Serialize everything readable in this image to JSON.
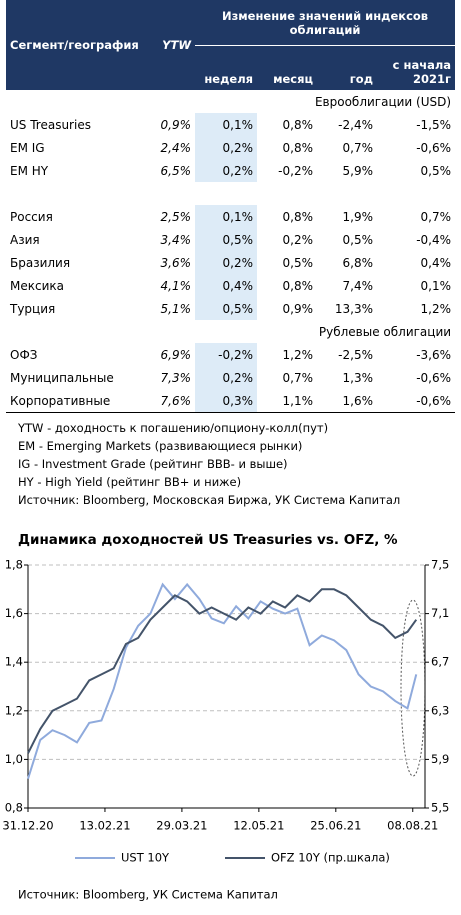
{
  "table": {
    "header": {
      "segment": "Сегмент/география",
      "ytw": "YTW",
      "change": "Изменение значений индексов облигаций",
      "columns": [
        "неделя",
        "месяц",
        "год",
        "с начала 2021г"
      ]
    },
    "sections": [
      {
        "title": "Еврооблигации (USD)",
        "rows": [
          [
            "US Treasuries",
            "0,9%",
            "0,1%",
            "0,8%",
            "-2,4%",
            "-1,5%"
          ],
          [
            "EM IG",
            "2,4%",
            "0,2%",
            "0,8%",
            "0,7%",
            "-0,6%"
          ],
          [
            "EM HY",
            "6,5%",
            "0,2%",
            "-0,2%",
            "5,9%",
            "0,5%"
          ]
        ]
      },
      {
        "rows": [
          [
            "Россия",
            "2,5%",
            "0,1%",
            "0,8%",
            "1,9%",
            "0,7%"
          ],
          [
            "Азия",
            "3,4%",
            "0,5%",
            "0,2%",
            "0,5%",
            "-0,4%"
          ],
          [
            "Бразилия",
            "3,6%",
            "0,2%",
            "0,5%",
            "6,8%",
            "0,4%"
          ],
          [
            "Мексика",
            "4,1%",
            "0,4%",
            "0,8%",
            "7,4%",
            "0,1%"
          ],
          [
            "Турция",
            "5,1%",
            "0,5%",
            "0,9%",
            "13,3%",
            "1,2%"
          ]
        ]
      },
      {
        "title": "Рублевые облигации",
        "rows": [
          [
            "ОФЗ",
            "6,9%",
            "-0,2%",
            "1,2%",
            "-2,5%",
            "-3,6%"
          ],
          [
            "Муниципальные",
            "7,3%",
            "0,2%",
            "0,7%",
            "1,3%",
            "-0,6%"
          ],
          [
            "Корпоративные",
            "7,6%",
            "0,3%",
            "1,1%",
            "1,6%",
            "-0,6%"
          ]
        ]
      }
    ]
  },
  "notes": [
    "YTW - доходность к погашению/опциону-колл(пут)",
    "EM - Emerging Markets (развивающиеся рынки)",
    "IG - Investment Grade (рейтинг BBB- и выше)",
    "HY - High Yield (рейтинг BB+ и ниже)",
    "Источник: Bloomberg, Московская Биржа, УК Система Капитал"
  ],
  "chart_data": {
    "type": "line",
    "title": "Динамика доходностей US Treasuries vs. OFZ, %",
    "x": [
      "31.12.20",
      "07.01.21",
      "14.01.21",
      "21.01.21",
      "28.01.21",
      "04.02.21",
      "11.02.21",
      "18.02.21",
      "25.02.21",
      "04.03.21",
      "11.03.21",
      "18.03.21",
      "25.03.21",
      "01.04.21",
      "08.04.21",
      "15.04.21",
      "22.04.21",
      "29.04.21",
      "06.05.21",
      "13.05.21",
      "20.05.21",
      "27.05.21",
      "03.06.21",
      "10.06.21",
      "17.06.21",
      "24.06.21",
      "01.07.21",
      "08.07.21",
      "15.07.21",
      "22.07.21",
      "29.07.21",
      "05.08.21",
      "10.08.21"
    ],
    "xlim": [
      "31.12.20",
      "15.08.21"
    ],
    "xticks": [
      "31.12.20",
      "13.02.21",
      "29.03.21",
      "12.05.21",
      "25.06.21",
      "08.08.21"
    ],
    "ylim": [
      0.8,
      1.8
    ],
    "yticks": [
      {
        "value": 0.8,
        "label": "0,8"
      },
      {
        "value": 1.0,
        "label": "1,0"
      },
      {
        "value": 1.2,
        "label": "1,2"
      },
      {
        "value": 1.4,
        "label": "1,4"
      },
      {
        "value": 1.6,
        "label": "1,6"
      },
      {
        "value": 1.8,
        "label": "1,8"
      }
    ],
    "y2lim": [
      5.5,
      7.5
    ],
    "y2ticks": [
      {
        "value": 5.5,
        "label": "5,5"
      },
      {
        "value": 5.9,
        "label": "5,9"
      },
      {
        "value": 6.3,
        "label": "6,3"
      },
      {
        "value": 6.7,
        "label": "6,7"
      },
      {
        "value": 7.1,
        "label": "7,1"
      },
      {
        "value": 7.5,
        "label": "7,5"
      }
    ],
    "grid": true,
    "series": [
      {
        "name": "UST 10Y",
        "color": "#8faadc",
        "values": [
          0.92,
          1.08,
          1.12,
          1.1,
          1.07,
          1.15,
          1.16,
          1.29,
          1.46,
          1.55,
          1.6,
          1.72,
          1.66,
          1.72,
          1.66,
          1.58,
          1.56,
          1.63,
          1.58,
          1.65,
          1.62,
          1.6,
          1.62,
          1.47,
          1.51,
          1.49,
          1.45,
          1.35,
          1.3,
          1.28,
          1.24,
          1.21,
          1.35
        ]
      },
      {
        "name": "OFZ 10Y (пр.шкала)",
        "color": "#44546a",
        "axis": "y2",
        "values": [
          5.95,
          6.15,
          6.3,
          6.35,
          6.4,
          6.55,
          6.6,
          6.65,
          6.85,
          6.9,
          7.05,
          7.15,
          7.25,
          7.2,
          7.1,
          7.15,
          7.1,
          7.05,
          7.15,
          7.1,
          7.2,
          7.15,
          7.25,
          7.2,
          7.3,
          7.3,
          7.25,
          7.15,
          7.05,
          7.0,
          6.9,
          6.95,
          7.05
        ]
      }
    ]
  },
  "source": "Источник: Bloomberg, УК Система Капитал"
}
